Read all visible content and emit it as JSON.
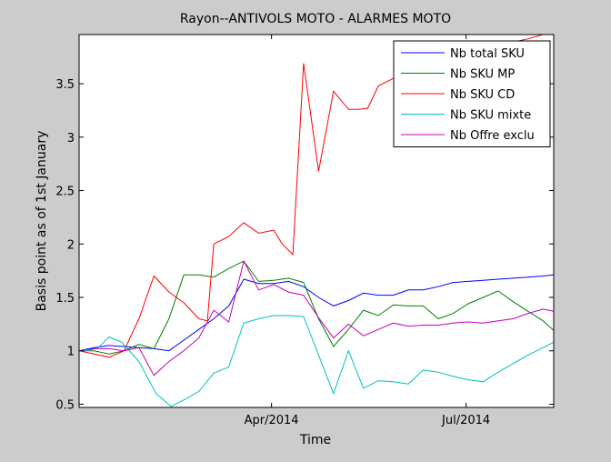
{
  "chart_data": {
    "type": "line",
    "title": "Rayon--ANTIVOLS MOTO - ALARMES MOTO",
    "xlabel": "Time",
    "ylabel": "Basis point as of 1st January",
    "xlim": [
      "2014-01-01",
      "2014-08-11"
    ],
    "ylim": [
      0.47,
      3.96
    ],
    "xticks": [
      {
        "label": "Apr/2014",
        "date": "2014-04-01"
      },
      {
        "label": "Jul/2014",
        "date": "2014-07-01"
      }
    ],
    "yticks": [
      0.5,
      1,
      1.5,
      2,
      2.5,
      3,
      3.5
    ],
    "ytick_labels": [
      "0.5",
      "1",
      "1.5",
      "2",
      "2.5",
      "3",
      "3.5"
    ],
    "grid": false,
    "legend_position": "top-right",
    "series": [
      {
        "name": "Nb total SKU",
        "color": "#0000ff",
        "x": [
          "2014-01-01",
          "2014-01-08",
          "2014-01-15",
          "2014-01-22",
          "2014-01-29",
          "2014-02-05",
          "2014-02-12",
          "2014-02-19",
          "2014-02-26",
          "2014-03-05",
          "2014-03-12",
          "2014-03-19",
          "2014-03-26",
          "2014-04-02",
          "2014-04-09",
          "2014-04-16",
          "2014-04-23",
          "2014-04-30",
          "2014-05-07",
          "2014-05-14",
          "2014-05-21",
          "2014-05-28",
          "2014-06-04",
          "2014-06-11",
          "2014-06-18",
          "2014-06-25",
          "2014-07-02",
          "2014-07-09",
          "2014-07-16",
          "2014-07-23",
          "2014-07-30",
          "2014-08-06",
          "2014-08-11"
        ],
        "y": [
          1.0,
          1.03,
          1.05,
          1.04,
          1.03,
          1.02,
          1.0,
          1.1,
          1.2,
          1.3,
          1.42,
          1.67,
          1.63,
          1.63,
          1.65,
          1.6,
          1.5,
          1.42,
          1.47,
          1.54,
          1.52,
          1.52,
          1.57,
          1.57,
          1.6,
          1.64,
          1.65,
          1.66,
          1.67,
          1.68,
          1.69,
          1.7,
          1.71
        ]
      },
      {
        "name": "Nb SKU MP",
        "color": "#008000",
        "x": [
          "2014-01-01",
          "2014-01-08",
          "2014-01-15",
          "2014-01-22",
          "2014-01-29",
          "2014-02-05",
          "2014-02-12",
          "2014-02-19",
          "2014-02-26",
          "2014-03-05",
          "2014-03-12",
          "2014-03-19",
          "2014-03-26",
          "2014-04-02",
          "2014-04-09",
          "2014-04-16",
          "2014-04-23",
          "2014-04-30",
          "2014-05-07",
          "2014-05-14",
          "2014-05-21",
          "2014-05-28",
          "2014-06-04",
          "2014-06-11",
          "2014-06-18",
          "2014-06-25",
          "2014-07-02",
          "2014-07-09",
          "2014-07-16",
          "2014-07-23",
          "2014-07-30",
          "2014-08-06",
          "2014-08-11"
        ],
        "y": [
          1.0,
          1.0,
          0.97,
          1.0,
          1.06,
          1.02,
          1.3,
          1.71,
          1.71,
          1.69,
          1.77,
          1.84,
          1.65,
          1.66,
          1.68,
          1.64,
          1.3,
          1.04,
          1.2,
          1.38,
          1.33,
          1.43,
          1.42,
          1.42,
          1.3,
          1.35,
          1.44,
          1.5,
          1.56,
          1.46,
          1.37,
          1.28,
          1.19
        ]
      },
      {
        "name": "Nb SKU CD",
        "color": "#ff0000",
        "x": [
          "2014-01-01",
          "2014-01-08",
          "2014-01-15",
          "2014-01-22",
          "2014-01-29",
          "2014-02-05",
          "2014-02-12",
          "2014-02-19",
          "2014-02-26",
          "2014-03-02",
          "2014-03-05",
          "2014-03-12",
          "2014-03-19",
          "2014-03-26",
          "2014-04-02",
          "2014-04-06",
          "2014-04-11",
          "2014-04-16",
          "2014-04-23",
          "2014-04-30",
          "2014-05-07",
          "2014-05-12",
          "2014-05-16",
          "2014-05-21",
          "2014-05-28",
          "2014-06-04",
          "2014-06-11",
          "2014-06-18",
          "2014-06-25",
          "2014-07-02",
          "2014-07-09",
          "2014-07-16",
          "2014-07-23",
          "2014-07-30",
          "2014-08-06",
          "2014-08-11"
        ],
        "y": [
          1.0,
          0.97,
          0.94,
          1.0,
          1.3,
          1.7,
          1.55,
          1.45,
          1.3,
          1.28,
          2.0,
          2.07,
          2.2,
          2.1,
          2.13,
          2.0,
          1.9,
          3.69,
          2.68,
          3.43,
          3.26,
          3.26,
          3.27,
          3.48,
          3.55,
          3.6,
          3.65,
          3.7,
          3.74,
          3.78,
          3.82,
          3.86,
          3.89,
          3.92,
          3.96,
          3.96
        ]
      },
      {
        "name": "Nb SKU mixte",
        "color": "#00bfbf",
        "x": [
          "2014-01-01",
          "2014-01-05",
          "2014-01-10",
          "2014-01-15",
          "2014-01-21",
          "2014-01-29",
          "2014-02-06",
          "2014-02-13",
          "2014-02-20",
          "2014-02-26",
          "2014-03-05",
          "2014-03-12",
          "2014-03-19",
          "2014-03-26",
          "2014-04-02",
          "2014-04-09",
          "2014-04-16",
          "2014-04-23",
          "2014-04-30",
          "2014-05-07",
          "2014-05-14",
          "2014-05-21",
          "2014-05-28",
          "2014-06-04",
          "2014-06-11",
          "2014-06-18",
          "2014-06-25",
          "2014-07-02",
          "2014-07-09",
          "2014-07-16",
          "2014-07-23",
          "2014-07-30",
          "2014-08-06",
          "2014-08-11"
        ],
        "y": [
          1.0,
          1.0,
          1.03,
          1.13,
          1.08,
          0.9,
          0.6,
          0.48,
          0.55,
          0.62,
          0.79,
          0.85,
          1.26,
          1.3,
          1.33,
          1.33,
          1.32,
          0.96,
          0.6,
          1.0,
          0.65,
          0.72,
          0.71,
          0.69,
          0.82,
          0.8,
          0.76,
          0.73,
          0.71,
          0.8,
          0.88,
          0.96,
          1.03,
          1.08
        ]
      },
      {
        "name": "Nb Offre exclu",
        "color": "#bf00bf",
        "x": [
          "2014-01-01",
          "2014-01-08",
          "2014-01-15",
          "2014-01-22",
          "2014-01-29",
          "2014-02-05",
          "2014-02-12",
          "2014-02-19",
          "2014-02-26",
          "2014-03-05",
          "2014-03-12",
          "2014-03-19",
          "2014-03-26",
          "2014-04-02",
          "2014-04-09",
          "2014-04-16",
          "2014-04-23",
          "2014-04-30",
          "2014-05-07",
          "2014-05-14",
          "2014-05-21",
          "2014-05-28",
          "2014-06-04",
          "2014-06-11",
          "2014-06-18",
          "2014-06-25",
          "2014-07-02",
          "2014-07-09",
          "2014-07-16",
          "2014-07-23",
          "2014-07-30",
          "2014-08-06",
          "2014-08-11"
        ],
        "y": [
          1.0,
          1.02,
          1.02,
          1.0,
          1.03,
          0.77,
          0.9,
          1.0,
          1.12,
          1.38,
          1.27,
          1.84,
          1.57,
          1.62,
          1.55,
          1.52,
          1.31,
          1.12,
          1.25,
          1.14,
          1.2,
          1.26,
          1.23,
          1.24,
          1.24,
          1.26,
          1.27,
          1.26,
          1.28,
          1.3,
          1.35,
          1.39,
          1.37
        ]
      }
    ]
  }
}
